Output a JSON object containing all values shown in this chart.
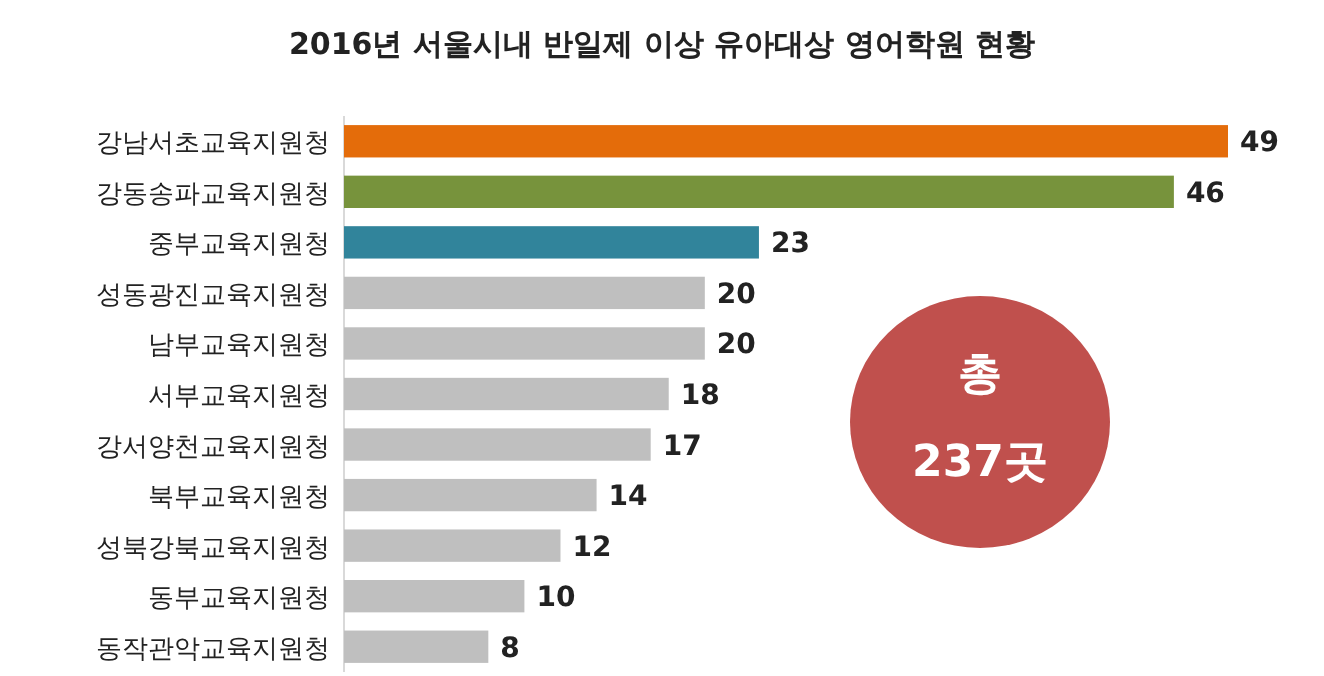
{
  "chart_data": {
    "type": "bar",
    "orientation": "horizontal",
    "title": "2016년 서울시내 반일제 이상 유아대상 영어학원 현황",
    "categories": [
      "강남서초교육지원청",
      "강동송파교육지원청",
      "중부교육지원청",
      "성동광진교육지원청",
      "남부교육지원청",
      "서부교육지원청",
      "강서양천교육지원청",
      "북부교육지원청",
      "성북강북교육지원청",
      "동부교육지원청",
      "동작관악교육지원청"
    ],
    "values": [
      49,
      46,
      23,
      20,
      20,
      18,
      17,
      14,
      12,
      10,
      8
    ],
    "colors": [
      "#e46c0a",
      "#77933c",
      "#31849b",
      "#bfbfbf",
      "#bfbfbf",
      "#bfbfbf",
      "#bfbfbf",
      "#bfbfbf",
      "#bfbfbf",
      "#bfbfbf",
      "#bfbfbf"
    ],
    "data_labels": true,
    "annotations": [
      "총",
      "237곳"
    ]
  }
}
